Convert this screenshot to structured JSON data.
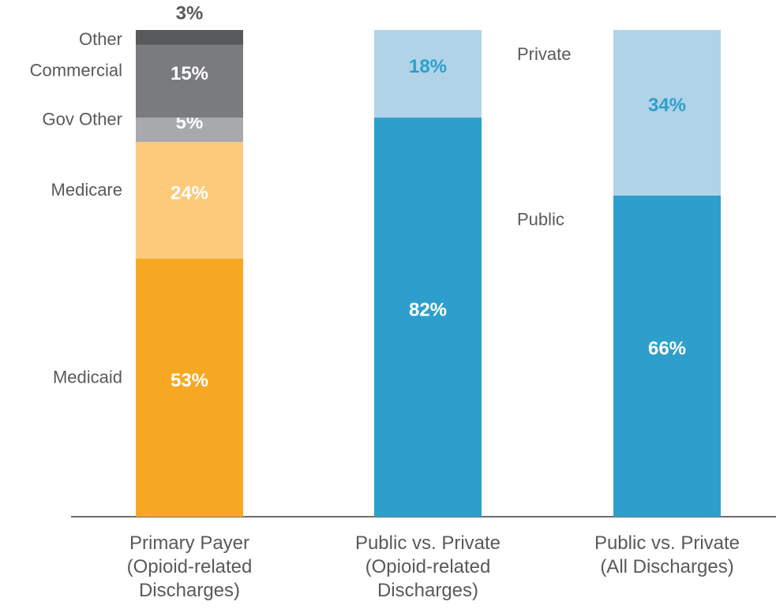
{
  "chart_data": {
    "type": "stacked_bar",
    "categories": [
      "Primary Payer\n(Opioid-related\nDischarges)",
      "Public vs. Private\n(Opioid-related\nDischarges)",
      "Public vs. Private\n(All Discharges)"
    ],
    "ylim": [
      0,
      100
    ],
    "series": [
      {
        "name": "Medicaid",
        "color": "#f7a823",
        "label_color": "#ffffff",
        "values": [
          53,
          null,
          null
        ],
        "value_labels": [
          "53%",
          null,
          null
        ]
      },
      {
        "name": "Medicare",
        "color": "#fdc97a",
        "label_color": "#ffffff",
        "values": [
          24,
          null,
          null
        ],
        "value_labels": [
          "24%",
          null,
          null
        ]
      },
      {
        "name": "Gov Other",
        "color": "#a7a9ac",
        "label_color": "#ffffff",
        "values": [
          5,
          null,
          null
        ],
        "value_labels": [
          "5%",
          null,
          null
        ]
      },
      {
        "name": "Commercial",
        "color": "#7a7b7e",
        "label_color": "#ffffff",
        "values": [
          15,
          null,
          null
        ],
        "value_labels": [
          "15%",
          null,
          null
        ]
      },
      {
        "name": "Other",
        "color": "#58595b",
        "label_color": "#58595b",
        "values": [
          3,
          null,
          null
        ],
        "value_labels": [
          "3%",
          null,
          null
        ]
      },
      {
        "name": "Public",
        "color": "#2e9fcc",
        "label_color": "#ffffff",
        "values": [
          null,
          82,
          66
        ],
        "value_labels": [
          null,
          "82%",
          "66%"
        ]
      },
      {
        "name": "Private",
        "color": "#b0d3e8",
        "label_color": "#2e9fcc",
        "values": [
          null,
          18,
          34
        ],
        "value_labels": [
          null,
          "18%",
          "34%"
        ]
      }
    ]
  }
}
